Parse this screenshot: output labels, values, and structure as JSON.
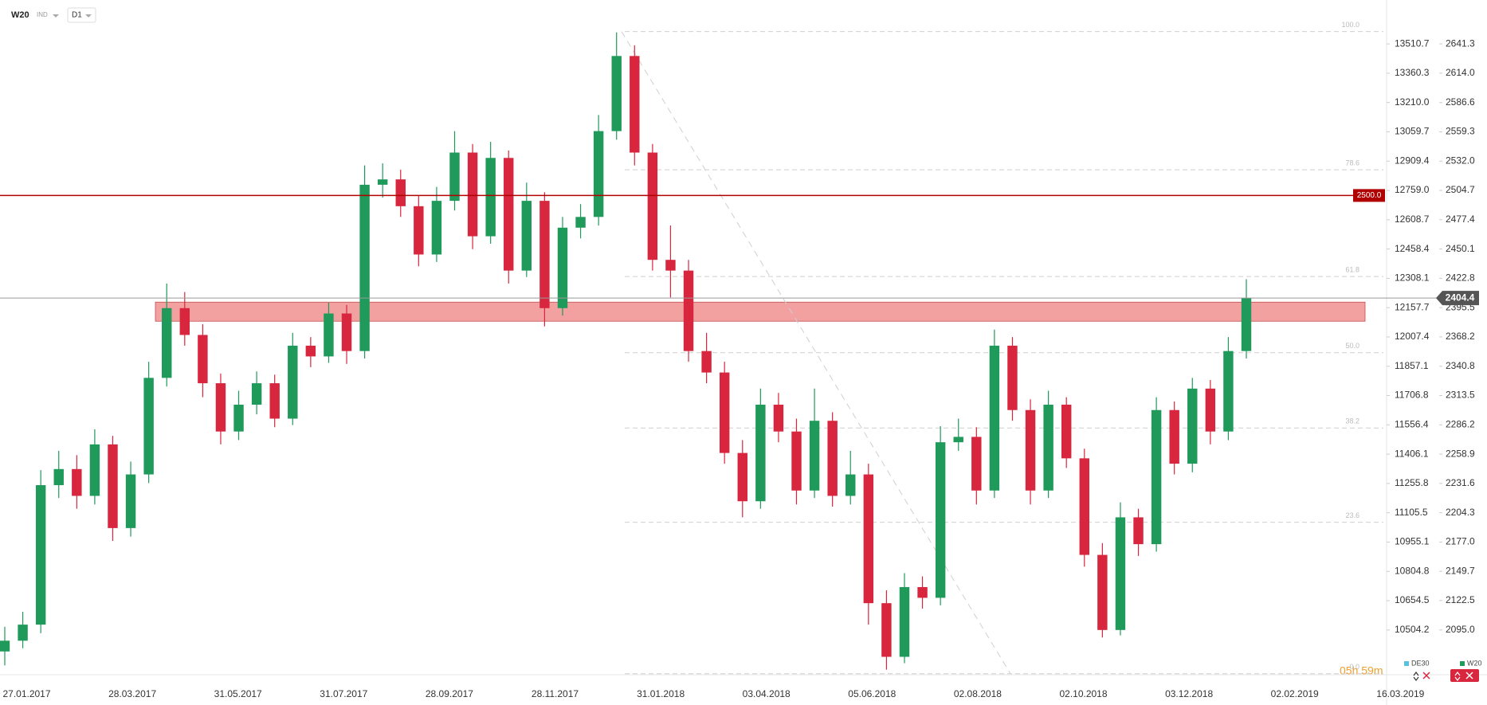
{
  "header": {
    "symbol": "W20",
    "kind": "IND",
    "interval": "D1"
  },
  "timer": "05h 59m",
  "chart_data": {
    "type": "candlestick",
    "ylim": [
      2053.3,
      2682.2
    ],
    "yticks": [
      2641.3,
      {
        "value": 2614,
        "label": "2614.0"
      },
      2586.6,
      2559.3,
      {
        "value": 2532,
        "label": "2532.0"
      },
      2504.7,
      2477.4,
      2450.1,
      2422.8,
      2395.5,
      2368.2,
      2340.8,
      2313.5,
      2286.2,
      2258.9,
      2231.6,
      2204.3,
      {
        "value": 2177,
        "label": "2177.0"
      },
      2149.7,
      2122.5,
      {
        "value": 2095,
        "label": "2095.0"
      }
    ],
    "y2lim": [
      10274.7,
      13735.8
    ],
    "y2ticks": [
      13510.7,
      13360.3,
      {
        "value": 13210,
        "label": "13210.0"
      },
      13059.7,
      12909.4,
      {
        "value": 12759,
        "label": "12759.0"
      },
      12608.7,
      12458.4,
      12308.1,
      12157.7,
      12007.4,
      11857.1,
      11706.8,
      11556.4,
      11406.1,
      11255.8,
      11105.5,
      10955.1,
      10804.8,
      10654.5,
      10504.2
    ],
    "xtick_labels": [
      "27.01.2017",
      "28.03.2017",
      "31.05.2017",
      "31.07.2017",
      "28.09.2017",
      "28.11.2017",
      "31.01.2018",
      "03.04.2018",
      "05.06.2018",
      "02.08.2018",
      "02.10.2018",
      "03.12.2018",
      "02.02.2019",
      "16.03.2019"
    ],
    "candles": {
      "up_color": "#1f9a5a",
      "down_color": "#d7263d",
      "open": [
        2075,
        2085,
        2100,
        2230,
        2245,
        2220,
        2268,
        2190,
        2240,
        2330,
        2395,
        2370,
        2325,
        2280,
        2305,
        2325,
        2292,
        2360,
        2350,
        2390,
        2355,
        2510,
        2515,
        2490,
        2445,
        2495,
        2540,
        2462,
        2535,
        2430,
        2495,
        2395,
        2470,
        2480,
        2560,
        2630,
        2540,
        2440,
        2430,
        2355,
        2335,
        2260,
        2215,
        2305,
        2280,
        2225,
        2290,
        2220,
        2240,
        2120,
        2070,
        2135,
        2125,
        2270,
        2275,
        2225,
        2360,
        2300,
        2225,
        2305,
        2255,
        2165,
        2095,
        2200,
        2175,
        2300,
        2250,
        2320,
        2280,
        2355
      ],
      "high": [
        2098,
        2112,
        2244,
        2262,
        2258,
        2282,
        2276,
        2252,
        2345,
        2418,
        2410,
        2380,
        2334,
        2318,
        2336,
        2333,
        2372,
        2368,
        2400,
        2398,
        2528,
        2530,
        2524,
        2500,
        2508,
        2560,
        2548,
        2550,
        2542,
        2512,
        2503,
        2480,
        2492,
        2575,
        2652,
        2640,
        2548,
        2472,
        2440,
        2372,
        2345,
        2272,
        2320,
        2316,
        2292,
        2320,
        2298,
        2262,
        2250,
        2132,
        2148,
        2145,
        2285,
        2292,
        2284,
        2375,
        2368,
        2310,
        2318,
        2312,
        2264,
        2176,
        2214,
        2208,
        2312,
        2308,
        2330,
        2328,
        2368,
        2422
      ],
      "low": [
        2062,
        2078,
        2092,
        2218,
        2208,
        2212,
        2178,
        2182,
        2232,
        2322,
        2360,
        2312,
        2268,
        2272,
        2296,
        2284,
        2286,
        2340,
        2344,
        2343,
        2348,
        2498,
        2480,
        2434,
        2438,
        2486,
        2450,
        2455,
        2418,
        2424,
        2378,
        2388,
        2460,
        2472,
        2552,
        2528,
        2430,
        2405,
        2345,
        2325,
        2250,
        2200,
        2208,
        2270,
        2212,
        2218,
        2210,
        2212,
        2100,
        2058,
        2064,
        2115,
        2118,
        2262,
        2212,
        2218,
        2290,
        2212,
        2218,
        2246,
        2154,
        2088,
        2090,
        2164,
        2168,
        2240,
        2242,
        2268,
        2272,
        2348
      ],
      "close": [
        2085,
        2100,
        2230,
        2245,
        2220,
        2268,
        2190,
        2240,
        2330,
        2395,
        2370,
        2325,
        2280,
        2305,
        2325,
        2292,
        2360,
        2350,
        2390,
        2355,
        2510,
        2515,
        2490,
        2445,
        2495,
        2540,
        2462,
        2535,
        2430,
        2495,
        2395,
        2470,
        2480,
        2560,
        2630,
        2540,
        2440,
        2430,
        2355,
        2335,
        2260,
        2215,
        2305,
        2280,
        2225,
        2290,
        2220,
        2240,
        2120,
        2070,
        2135,
        2125,
        2270,
        2275,
        2225,
        2360,
        2300,
        2225,
        2305,
        2255,
        2165,
        2095,
        2200,
        2175,
        2300,
        2250,
        2320,
        2280,
        2355,
        2404.4
      ]
    },
    "last_price": 2404.4,
    "level_line": {
      "value": 2500,
      "label": "2500.0",
      "color": "#b00000"
    },
    "zone": [
      2382.8,
      2400.6
    ],
    "fibonacci": [
      {
        "label": "100.0",
        "value": 2652.8
      },
      {
        "label": "78.6",
        "value": 2524.0
      },
      {
        "label": "61.8",
        "value": 2424.5
      },
      {
        "label": "50.0",
        "value": 2353.5
      },
      {
        "label": "38.2",
        "value": 2283.3
      },
      {
        "label": "23.6",
        "value": 2195.4
      },
      {
        "label": "0.0",
        "value": 2054.2
      }
    ],
    "legend": [
      {
        "name": "DE30",
        "color": "#5bc0de"
      },
      {
        "name": "W20",
        "color": "#1f9a5a"
      }
    ]
  }
}
